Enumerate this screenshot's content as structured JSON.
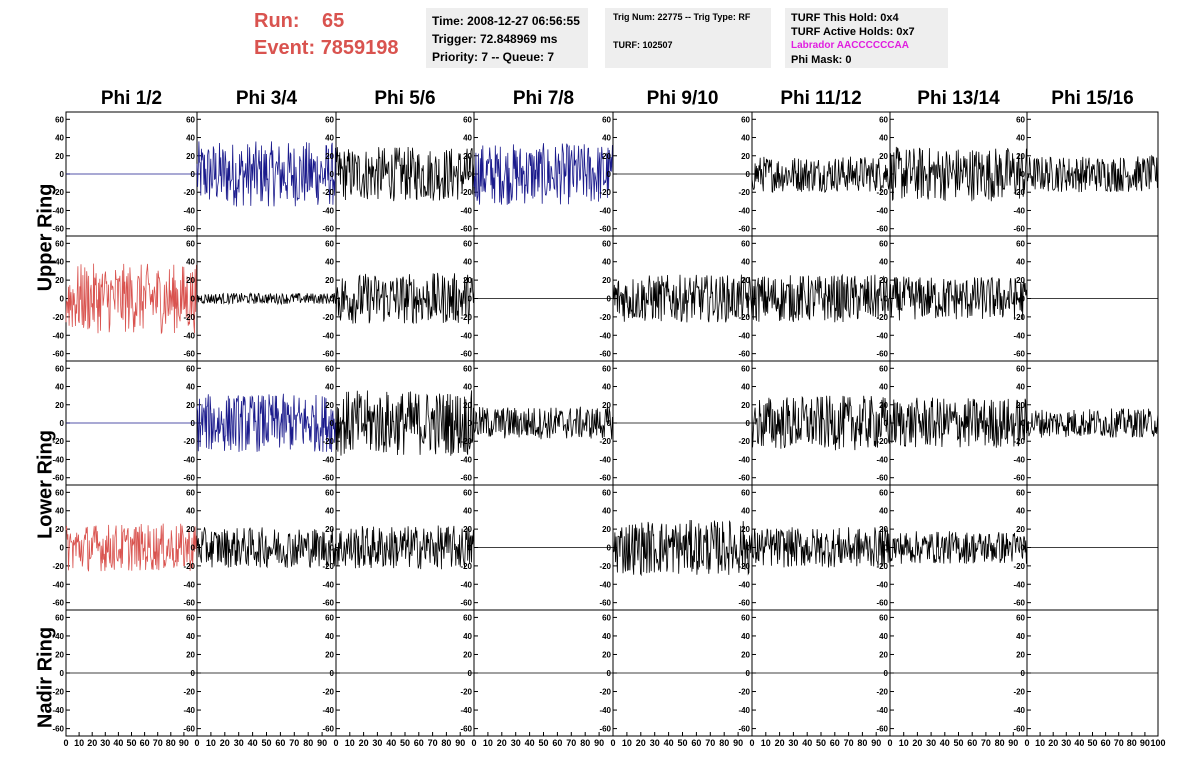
{
  "header": {
    "run_label": "Run:",
    "run_value": "65",
    "event_label": "Event:",
    "event_value": "7859198"
  },
  "info_box_1": {
    "time": "Time: 2008-12-27 06:56:55",
    "trigger": "Trigger: 72.848969 ms",
    "priority": "Priority: 7 -- Queue: 7"
  },
  "info_box_2": {
    "trig": "Trig Num: 22775 -- Trig Type: RF",
    "turf": "TURF: 102507"
  },
  "info_box_3": {
    "this_hold": "TURF This Hold: 0x4",
    "active_holds": "TURF Active Holds: 0x7",
    "labrador": "Labrador AACCCCCCAA",
    "phi_mask": "Phi Mask: 0"
  },
  "columns": [
    "Phi 1/2",
    "Phi 3/4",
    "Phi 5/6",
    "Phi 7/8",
    "Phi 9/10",
    "Phi 11/12",
    "Phi 13/14",
    "Phi 15/16"
  ],
  "ring_labels": {
    "upper": "Upper Ring",
    "lower": "Lower Ring",
    "nadir": "Nadir Ring"
  },
  "colors": {
    "red": "#d9534f",
    "blue": "#1a1a8c",
    "black": "#000000",
    "magenta": "#e01ee0"
  },
  "chart_data": {
    "type": "line",
    "y_ticks": [
      60,
      40,
      20,
      0,
      -20,
      -40,
      -60
    ],
    "ylim": [
      -68,
      68
    ],
    "x_ticks": [
      "0",
      "10",
      "20",
      "30",
      "40",
      "50",
      "60",
      "70",
      "80",
      "90",
      "100"
    ],
    "xlim": [
      0,
      100
    ],
    "traces": [
      [
        "blue-flat",
        "blue",
        "black",
        "blue",
        "black-flat",
        "black",
        "black",
        "black"
      ],
      [
        "red",
        "black-small",
        "black",
        "black-flat",
        "black",
        "black",
        "black",
        "black-flat"
      ],
      [
        "blue-flat",
        "blue",
        "black",
        "black",
        "black-flat",
        "black",
        "black",
        "black"
      ],
      [
        "red",
        "black",
        "black",
        "black-flat",
        "black",
        "black",
        "black",
        "black-flat"
      ],
      [
        "black-flat",
        "black-flat",
        "black-flat",
        "black-flat",
        "black-flat",
        "black-flat",
        "black-flat",
        "black-flat"
      ]
    ],
    "amplitudes": [
      [
        0,
        36,
        30,
        34,
        0,
        20,
        30,
        20
      ],
      [
        38,
        6,
        28,
        0,
        26,
        26,
        24,
        0
      ],
      [
        0,
        32,
        36,
        18,
        0,
        30,
        28,
        16
      ],
      [
        26,
        22,
        24,
        0,
        30,
        22,
        18,
        0
      ],
      [
        0,
        0,
        0,
        0,
        0,
        0,
        0,
        0
      ]
    ]
  }
}
